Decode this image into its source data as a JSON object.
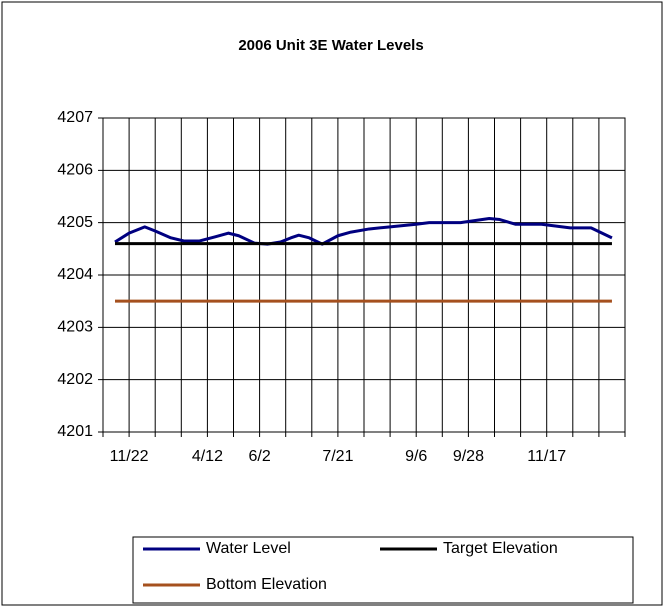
{
  "chart_data": {
    "type": "line",
    "title": "2006 Unit 3E Water Levels",
    "xlim": [
      0,
      20
    ],
    "xticks": [
      {
        "value": 1,
        "label": "11/22"
      },
      {
        "value": 4,
        "label": "4/12"
      },
      {
        "value": 6,
        "label": "6/2"
      },
      {
        "value": 9,
        "label": "7/21"
      },
      {
        "value": 12,
        "label": "9/6"
      },
      {
        "value": 14,
        "label": "9/28"
      },
      {
        "value": 17,
        "label": "11/17"
      }
    ],
    "xgrid": [
      0,
      1,
      2,
      3,
      4,
      5,
      6,
      7,
      8,
      9,
      10,
      11,
      12,
      13,
      14,
      15,
      16,
      17,
      18,
      19,
      20
    ],
    "ylim": [
      4201,
      4207
    ],
    "yticks": [
      4201,
      4202,
      4203,
      4204,
      4205,
      4206,
      4207
    ],
    "grid": true,
    "series": [
      {
        "name": "Water Level",
        "color": "#000080",
        "x": [
          0.46,
          1,
          1.6,
          2,
          2.6,
          3.1,
          3.7,
          4.3,
          4.8,
          5.2,
          5.8,
          6.3,
          6.8,
          7.2,
          7.5,
          7.9,
          8.4,
          9,
          9.5,
          10.2,
          11,
          12,
          12.5,
          13.7,
          14.8,
          15.2,
          15.8,
          16.8,
          17.9,
          18.7,
          19.5
        ],
        "values": [
          4204.63,
          4204.8,
          4204.92,
          4204.84,
          4204.71,
          4204.65,
          4204.65,
          4204.73,
          4204.8,
          4204.75,
          4204.61,
          4204.59,
          4204.63,
          4204.71,
          4204.76,
          4204.71,
          4204.59,
          4204.75,
          4204.82,
          4204.88,
          4204.92,
          4204.97,
          4205.0,
          4205.0,
          4205.08,
          4205.06,
          4204.97,
          4204.97,
          4204.9,
          4204.9,
          4204.71
        ]
      },
      {
        "name": "Target Elevation",
        "color": "#000000",
        "x": [
          0.46,
          19.5
        ],
        "values": [
          4204.6,
          4204.6
        ]
      },
      {
        "name": "Bottom Elevation",
        "color": "#a5501e",
        "x": [
          0.46,
          19.5
        ],
        "values": [
          4203.5,
          4203.5
        ]
      }
    ]
  }
}
